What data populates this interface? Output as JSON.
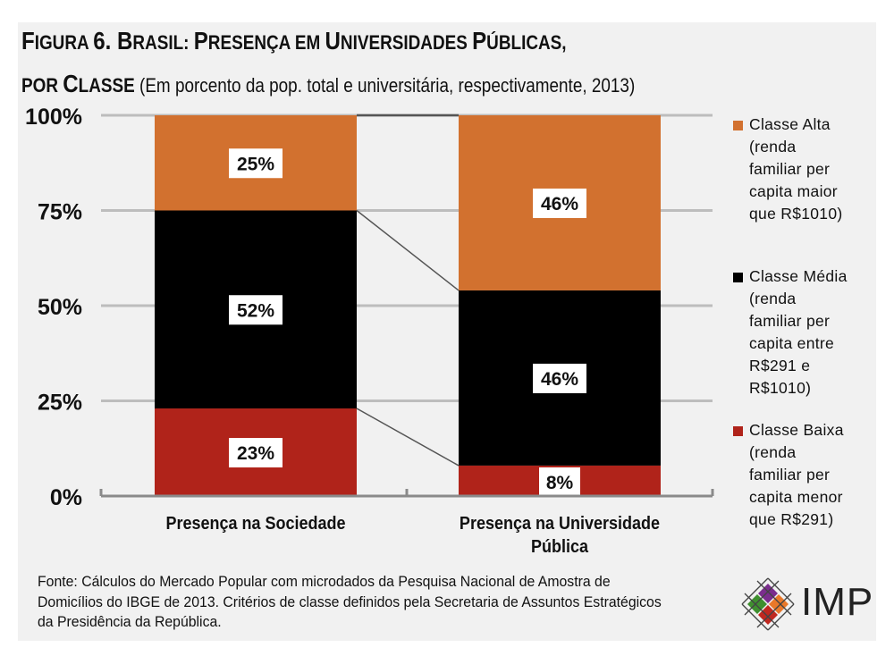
{
  "title": {
    "line1_parts": [
      {
        "text": "F",
        "size": "big"
      },
      {
        "text": "IGURA ",
        "size": "small"
      },
      {
        "text": "6. B",
        "size": "big"
      },
      {
        "text": "RASIL: ",
        "size": "small"
      },
      {
        "text": "P",
        "size": "big"
      },
      {
        "text": "RESENÇA EM ",
        "size": "small"
      },
      {
        "text": "U",
        "size": "big"
      },
      {
        "text": "NIVERSIDADES ",
        "size": "small"
      },
      {
        "text": "P",
        "size": "big"
      },
      {
        "text": "ÚBLICAS,",
        "size": "small"
      }
    ],
    "line2_parts": [
      {
        "text": "POR ",
        "size": "small"
      },
      {
        "text": "C",
        "size": "big"
      },
      {
        "text": "LASSE",
        "size": "small"
      }
    ],
    "subtitle": " (Em porcento da pop. total e universitária, respectivamente, 2013)"
  },
  "colors": {
    "alta": "#d2712f",
    "media": "#000000",
    "baixa": "#b0231a",
    "grid": "#bdbdbd",
    "connector": "#555555",
    "background": "#f1f1f1"
  },
  "chart_data": {
    "type": "bar",
    "stacked": true,
    "title": "Figura 6. Brasil: Presença em Universidades Públicas, por Classe",
    "subtitle": "(Em porcento da pop. total e universitária, respectivamente, 2013)",
    "categories": [
      "Presença na Sociedade",
      "Presença na Universidade Pública"
    ],
    "category_lines": [
      [
        "Presença na Sociedade"
      ],
      [
        "Presença na Universidade",
        "Pública"
      ]
    ],
    "series": [
      {
        "name": "Classe Baixa",
        "key": "baixa",
        "values": [
          23,
          8
        ],
        "labels": [
          "23%",
          "8%"
        ]
      },
      {
        "name": "Classe Média",
        "key": "media",
        "values": [
          52,
          46
        ],
        "labels": [
          "52%",
          "46%"
        ]
      },
      {
        "name": "Classe Alta",
        "key": "alta",
        "values": [
          25,
          46
        ],
        "labels": [
          "25%",
          "46%"
        ]
      }
    ],
    "ylim": [
      0,
      100
    ],
    "yticks": [
      0,
      25,
      50,
      75,
      100
    ],
    "ytick_labels": [
      "0%",
      "25%",
      "50%",
      "75%",
      "100%"
    ],
    "grid": true,
    "series_lines": true,
    "legend_position": "right",
    "xlabel": "",
    "ylabel": ""
  },
  "legend": [
    {
      "key": "alta",
      "text": "Classe Alta\n(renda\nfamiliar per\ncapita maior\nque R$1010)"
    },
    {
      "key": "media",
      "text": "Classe Média\n(renda\nfamiliar per\ncapita entre\nR$291 e\nR$1010)"
    },
    {
      "key": "baixa",
      "text": "Classe Baixa\n(renda\nfamiliar per\ncapita menor\nque R$291)"
    }
  ],
  "source": "Fonte: Cálculos do Mercado Popular com microdados da Pesquisa Nacional de Amostra de Domicílios do IBGE de 2013. Critérios de classe definidos pela Secretaria de Assuntos Estratégicos da Presidência da República.",
  "logo": {
    "text": "IMP",
    "colors": [
      "#7b2d8e",
      "#3f8f2f",
      "#e9782a",
      "#c0281f"
    ]
  }
}
